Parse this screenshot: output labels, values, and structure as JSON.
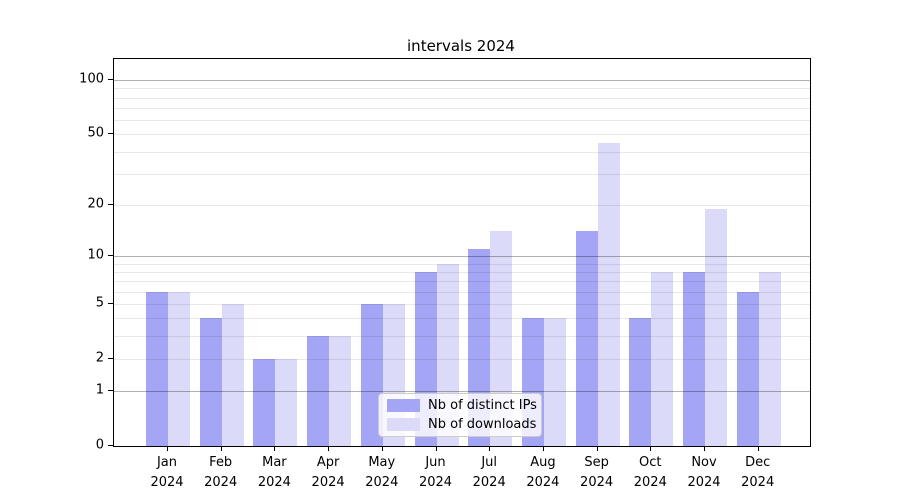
{
  "chart_data": {
    "type": "bar",
    "title": "intervals 2024",
    "categories": [
      "Jan",
      "Feb",
      "Mar",
      "Apr",
      "May",
      "Jun",
      "Jul",
      "Aug",
      "Sep",
      "Oct",
      "Nov",
      "Dec"
    ],
    "x_tick_year": "2024",
    "series": [
      {
        "name": "Nb of distinct IPs",
        "color": "#a5a5f6",
        "values": [
          6,
          4,
          2,
          3,
          5,
          8,
          11,
          4,
          14,
          4,
          8,
          6
        ]
      },
      {
        "name": "Nb of downloads",
        "color": "#dbdbf9",
        "values": [
          6,
          5,
          2,
          3,
          5,
          9,
          14,
          4,
          45,
          8,
          19,
          8
        ]
      }
    ],
    "y_ticks": [
      0,
      1,
      2,
      5,
      10,
      20,
      50,
      100
    ],
    "y_minor_gridlines": [
      2,
      3,
      4,
      5,
      6,
      7,
      8,
      9,
      20,
      30,
      40,
      50,
      60,
      70,
      80,
      90
    ],
    "y_major_gridlines": [
      1,
      10,
      100
    ],
    "y_scale": "log1p",
    "ylim": [
      0,
      132
    ],
    "grid": true,
    "legend_position": "lower center"
  }
}
